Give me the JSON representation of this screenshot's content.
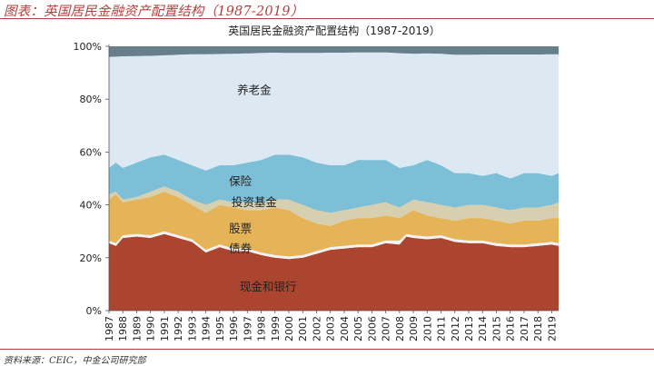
{
  "header": {
    "title": "图表：英国居民金融资产配置结构（1987-2019）"
  },
  "footer": {
    "source": "资料来源：CEIC，中金公司研究部"
  },
  "colors": {
    "cash_bank": "#ab4530",
    "bonds": "#f2f2f2",
    "stocks": "#e6b458",
    "funds": "#d6cfb0",
    "insurance": "#7dbfd6",
    "pension": "#dce9f3",
    "other": "#677f8a",
    "header": "#b0413e"
  },
  "chart_data": {
    "type": "area",
    "stacked": true,
    "title": "英国居民金融资产配置结构（1987-2019）",
    "xlabel": "",
    "ylabel": "",
    "ylim": [
      0,
      100
    ],
    "y_ticks": [
      "0%",
      "20%",
      "40%",
      "60%",
      "80%",
      "100%"
    ],
    "x_ticks": [
      "1987",
      "1988",
      "1989",
      "1990",
      "1991",
      "1992",
      "1993",
      "1994",
      "1995",
      "1996",
      "1997",
      "1998",
      "1999",
      "2000",
      "2001",
      "2002",
      "2003",
      "2004",
      "2005",
      "2006",
      "2007",
      "2008",
      "2009",
      "2010",
      "2011",
      "2012",
      "2013",
      "2014",
      "2015",
      "2016",
      "2017",
      "2018",
      "2019"
    ],
    "legend": "none (labels inside areas)",
    "grid": false,
    "x_range": [
      1987,
      2019.5
    ],
    "boundaries": [
      {
        "key": "cash_bank_top",
        "x": [
          1987,
          1987.5,
          1988,
          1989,
          1990,
          1991,
          1992,
          1993,
          1994,
          1995,
          1996,
          1997,
          1998,
          1999,
          2000,
          2001,
          2002,
          2003,
          2004,
          2005,
          2006,
          2007,
          2008,
          2008.5,
          2009,
          2010,
          2011,
          2012,
          2013,
          2014,
          2015,
          2016,
          2017,
          2018,
          2019,
          2019.5
        ],
        "y": [
          25.5,
          24.5,
          27.5,
          28,
          27.5,
          29,
          27.5,
          26,
          22,
          24,
          22.5,
          22.5,
          21,
          20,
          19.5,
          20,
          21.5,
          23,
          23.5,
          24,
          24,
          25.5,
          25,
          28,
          27.5,
          27,
          27.5,
          26,
          25.5,
          25.5,
          24.5,
          24,
          24,
          24.5,
          25,
          24.5
        ]
      },
      {
        "key": "bonds_top",
        "x": [
          1987,
          1987.5,
          1988,
          1989,
          1990,
          1991,
          1992,
          1993,
          1994,
          1995,
          1996,
          1997,
          1998,
          1999,
          2000,
          2001,
          2002,
          2003,
          2004,
          2005,
          2006,
          2007,
          2008,
          2008.5,
          2009,
          2010,
          2011,
          2012,
          2013,
          2014,
          2015,
          2016,
          2017,
          2018,
          2019,
          2019.5
        ],
        "y": [
          26.5,
          25.5,
          28.5,
          29,
          28.5,
          30,
          28.5,
          27,
          23,
          25,
          23.5,
          23.5,
          22,
          21,
          20.5,
          21,
          22.5,
          24,
          24.5,
          25,
          25,
          26.5,
          26.5,
          29,
          28.5,
          28,
          28.5,
          27,
          26.5,
          26.5,
          25.5,
          25,
          25,
          25.5,
          26,
          25.5
        ]
      },
      {
        "key": "stocks_top",
        "x": [
          1987,
          1987.5,
          1988,
          1989,
          1990,
          1991,
          1992,
          1993,
          1994,
          1995,
          1996,
          1997,
          1998,
          1999,
          2000,
          2001,
          2002,
          2003,
          2004,
          2005,
          2006,
          2007,
          2008,
          2009,
          2010,
          2011,
          2012,
          2013,
          2014,
          2015,
          2016,
          2017,
          2018,
          2019,
          2019.5
        ],
        "y": [
          42,
          44,
          41,
          42,
          43,
          45,
          43,
          40,
          37,
          40,
          39,
          38,
          38,
          39,
          38,
          35,
          33,
          32,
          34,
          35,
          35,
          36,
          35,
          38,
          36,
          35,
          34,
          35,
          35,
          34,
          33,
          34,
          34,
          35,
          35
        ]
      },
      {
        "key": "funds_top",
        "x": [
          1987,
          1987.5,
          1988,
          1989,
          1990,
          1991,
          1992,
          1993,
          1994,
          1995,
          1996,
          1997,
          1998,
          1999,
          2000,
          2001,
          2002,
          2003,
          2004,
          2005,
          2006,
          2007,
          2008,
          2009,
          2010,
          2011,
          2012,
          2013,
          2014,
          2015,
          2016,
          2017,
          2018,
          2019,
          2019.5
        ],
        "y": [
          44,
          45,
          42,
          43,
          45,
          47,
          45,
          42,
          40,
          42,
          41,
          41,
          41,
          42,
          42,
          40,
          38,
          37,
          38,
          39,
          40,
          41,
          39,
          42,
          41,
          40,
          39,
          40,
          40,
          39,
          38,
          39,
          39,
          40,
          41
        ]
      },
      {
        "key": "insurance_top",
        "x": [
          1987,
          1987.5,
          1988,
          1989,
          1990,
          1991,
          1992,
          1993,
          1994,
          1995,
          1996,
          1997,
          1998,
          1999,
          2000,
          2001,
          2002,
          2003,
          2004,
          2005,
          2006,
          2007,
          2008,
          2009,
          2010,
          2011,
          2012,
          2013,
          2014,
          2015,
          2016,
          2017,
          2018,
          2019,
          2019.5
        ],
        "y": [
          54,
          56,
          54,
          56,
          58,
          59,
          57,
          55,
          53,
          55,
          55,
          56,
          57,
          59,
          59,
          58,
          56,
          55,
          55,
          57,
          57,
          57,
          54,
          55,
          57,
          55,
          52,
          52,
          51,
          52,
          50,
          52,
          52,
          51,
          52
        ]
      },
      {
        "key": "pension_top",
        "x": [
          1987,
          1988,
          1989,
          1990,
          1991,
          1992,
          1993,
          1994,
          1995,
          1996,
          1997,
          1998,
          1999,
          2000,
          2001,
          2002,
          2003,
          2004,
          2005,
          2006,
          2007,
          2008,
          2009,
          2010,
          2011,
          2012,
          2013,
          2014,
          2015,
          2016,
          2017,
          2018,
          2019,
          2019.5
        ],
        "y": [
          96,
          96.2,
          96.3,
          96.4,
          96.6,
          96.8,
          97,
          97,
          97.1,
          97.2,
          97.3,
          97.5,
          97.6,
          97.5,
          97.5,
          97.5,
          97.6,
          97.6,
          97.7,
          97.7,
          97.7,
          97.4,
          97.2,
          97.3,
          97.2,
          96.8,
          96.8,
          96.9,
          96.9,
          96.9,
          96.9,
          96.9,
          97,
          97
        ]
      }
    ],
    "series": [
      {
        "name": "现金和银行",
        "key": "cash_bank",
        "lower": null,
        "upper": "cash_bank_top"
      },
      {
        "name": "债券",
        "key": "bonds",
        "lower": "cash_bank_top",
        "upper": "bonds_top"
      },
      {
        "name": "股票",
        "key": "stocks",
        "lower": "bonds_top",
        "upper": "stocks_top"
      },
      {
        "name": "投资基金",
        "key": "funds",
        "lower": "stocks_top",
        "upper": "funds_top"
      },
      {
        "name": "保险",
        "key": "insurance",
        "lower": "funds_top",
        "upper": "insurance_top"
      },
      {
        "name": "养老金",
        "key": "pension",
        "lower": "insurance_top",
        "upper": "pension_top"
      },
      {
        "name": "",
        "key": "other",
        "lower": "pension_top",
        "upper": null
      }
    ],
    "area_labels": [
      {
        "series": "pension",
        "text": "养老金",
        "x": 1997.5,
        "y": 82
      },
      {
        "series": "insurance",
        "text": "保险",
        "x": 1996.5,
        "y": 47.5
      },
      {
        "series": "funds",
        "text": "投资基金",
        "x": 1997.5,
        "y": 39.5
      },
      {
        "series": "stocks",
        "text": "股票",
        "x": 1996.5,
        "y": 29.5
      },
      {
        "series": "bonds",
        "text": "债券",
        "x": 1996.5,
        "y": 22
      },
      {
        "series": "cash_bank",
        "text": "现金和银行",
        "x": 1998.5,
        "y": 7.5
      }
    ]
  }
}
